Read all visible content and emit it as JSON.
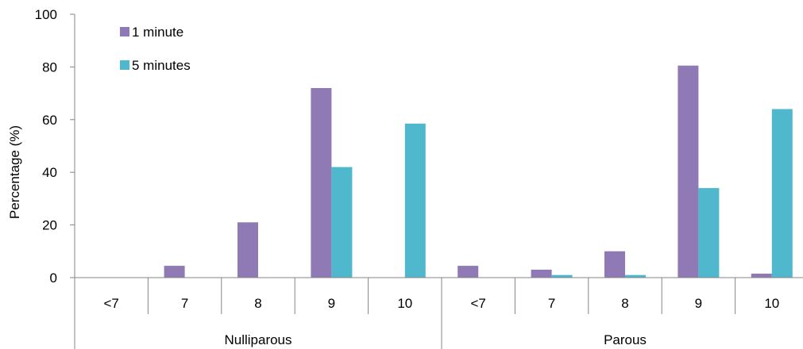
{
  "chart_data": {
    "type": "bar",
    "title": "",
    "ylabel": "Percentage (%)",
    "xlabel": "",
    "ylim": [
      0,
      100
    ],
    "yticks": [
      0,
      20,
      40,
      60,
      80,
      100
    ],
    "grid": false,
    "legend_position": "top-left",
    "groups": [
      {
        "name": "Nulliparous",
        "categories": [
          "<7",
          "7",
          "8",
          "9",
          "10"
        ]
      },
      {
        "name": "Parous",
        "categories": [
          "<7",
          "7",
          "8",
          "9",
          "10"
        ]
      }
    ],
    "series": [
      {
        "name": "1 minute",
        "color": "#8f7ab5",
        "values": [
          0,
          4.5,
          21,
          72,
          0,
          4.5,
          3,
          10,
          80.5,
          1.5
        ]
      },
      {
        "name": "5 minutes",
        "color": "#4fb8cc",
        "values": [
          0,
          0,
          0,
          42,
          58.5,
          0,
          1,
          1,
          34,
          64
        ]
      }
    ]
  }
}
